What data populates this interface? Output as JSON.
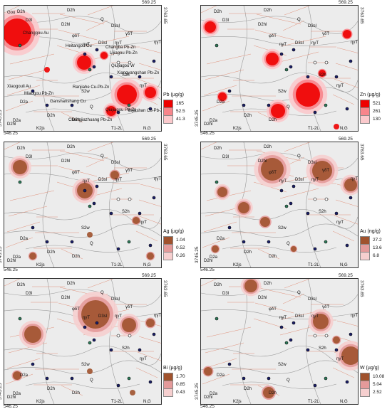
{
  "coords": {
    "x_left": "546.25",
    "x_right": "569.25",
    "y_top": "3763.65",
    "y_bottom": "3745.25"
  },
  "panels": [
    {
      "id": "pb",
      "legend_title": "Pb (µg/g)",
      "legend_values": [
        "165",
        "52.5",
        "41.3"
      ],
      "legend_colors": [
        "#ee0000",
        "#f7858b",
        "#fbc9cc"
      ],
      "show_place_labels": true
    },
    {
      "id": "zn",
      "legend_title": "Zn (µg/g)",
      "legend_values": [
        "521",
        "261",
        "130"
      ],
      "legend_colors": [
        "#ee0000",
        "#f7858b",
        "#fbc9cc"
      ],
      "show_place_labels": false
    },
    {
      "id": "ag",
      "legend_title": "Ag (µg/g)",
      "legend_values": [
        "1.04",
        "0.52",
        "0.26"
      ],
      "legend_colors": [
        "#a0522d",
        "#e49a9a",
        "#f6cfcf"
      ],
      "show_place_labels": false
    },
    {
      "id": "au",
      "legend_title": "Au (ng/g)",
      "legend_values": [
        "27.2",
        "13.6",
        "6.8"
      ],
      "legend_colors": [
        "#a0522d",
        "#e49a9a",
        "#f6cfcf"
      ],
      "show_place_labels": false
    },
    {
      "id": "bi",
      "legend_title": "Bi (µg/g)",
      "legend_values": [
        "1.70",
        "0.85",
        "0.43"
      ],
      "legend_colors": [
        "#a0522d",
        "#e49a9a",
        "#f6cfcf"
      ],
      "show_place_labels": false
    },
    {
      "id": "w",
      "legend_title": "W (µg/g)",
      "legend_values": [
        "10.08",
        "5.04",
        "2.52"
      ],
      "legend_colors": [
        "#a0522d",
        "#e49a9a",
        "#f6cfcf"
      ],
      "show_place_labels": false
    }
  ],
  "geology_labels": [
    "D2h",
    "D2h",
    "D3l",
    "D2hl",
    "D3sl",
    "Q",
    "D3sl",
    "φδT",
    "ηγT",
    "γδT",
    "ηγT",
    "ηγT",
    "S2w",
    "S2h",
    "D2a",
    "D2a",
    "D2h",
    "D2hl",
    "D2h",
    "K2js",
    "T1-2L",
    "N,G",
    "Q",
    "ηγT"
  ],
  "place_labels": [
    "Changgou Au",
    "Heitangou Cu",
    "Changba Pb-Zn",
    "Lijiagou Pb-Zn",
    "Qiujiagou W",
    "Xiangyangshan Pb-Zn",
    "Xiaogouli Au",
    "Miaogou Pb-Zn",
    "Ranjiahe Cu-Pb-Zn",
    "Ganshanshang Cu",
    "Chengjiazhuang Pb-Zn",
    "Bijiashan Cu-Pb-Zn",
    "Qiujiagou Pb-Zn",
    "Gou"
  ]
}
